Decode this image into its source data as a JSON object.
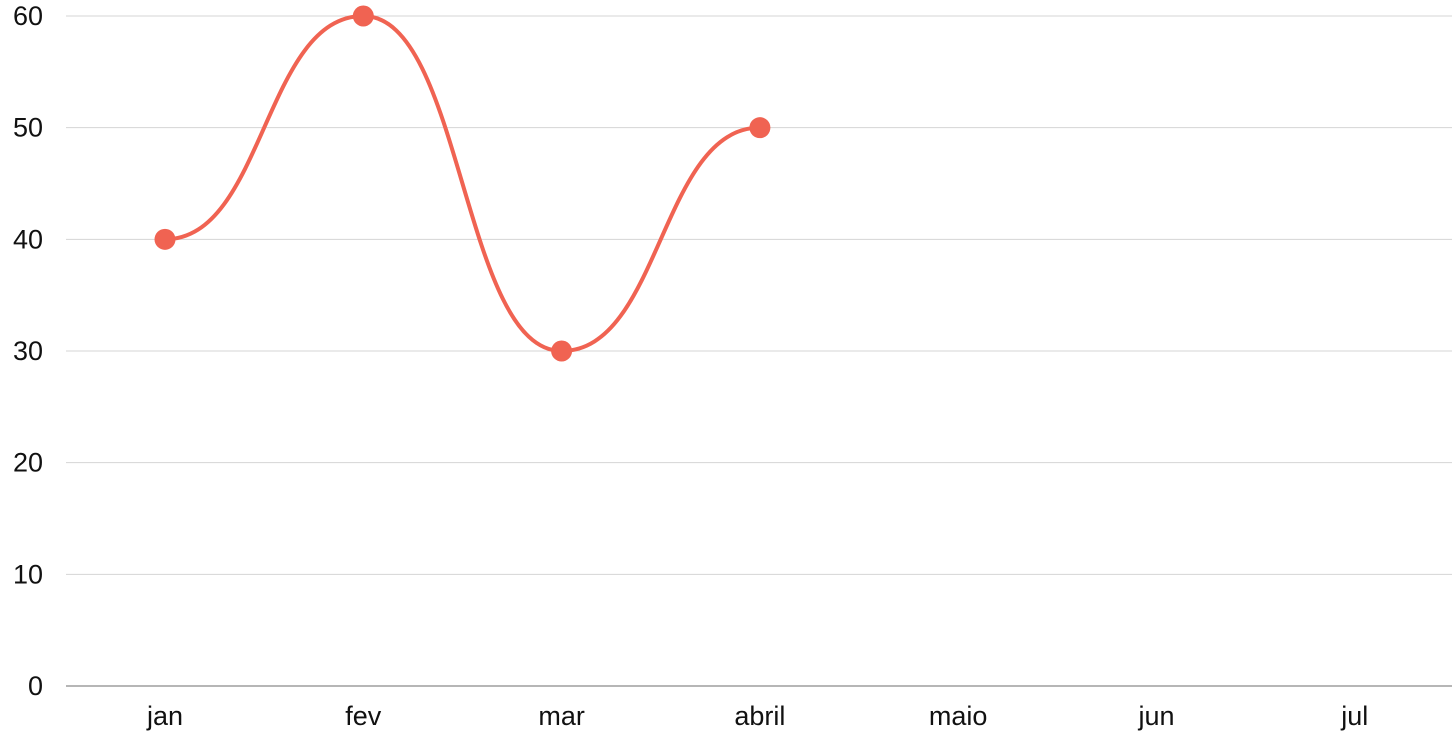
{
  "chart_data": {
    "type": "line",
    "categories": [
      "jan",
      "fev",
      "mar",
      "abril",
      "maio",
      "jun",
      "jul"
    ],
    "series": [
      {
        "values": [
          40,
          60,
          30,
          50,
          null,
          null,
          null
        ],
        "color": "#f06352"
      }
    ],
    "y_ticks": [
      "0",
      "10",
      "20",
      "30",
      "40",
      "50",
      "60"
    ],
    "ylim": [
      0,
      60
    ],
    "grid": true,
    "smooth": true,
    "markers": true,
    "legend": "none"
  }
}
